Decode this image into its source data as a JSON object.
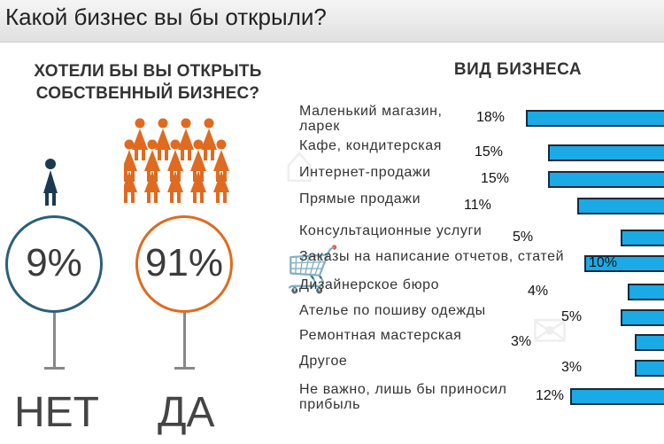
{
  "header": {
    "title": "Какой бизнес вы бы открыли?"
  },
  "left_panel": {
    "question_lines": [
      "ХОТЕЛИ БЫ ВЫ ОТКРЫТЬ",
      "СОБСТВЕННЫЙ БИЗНЕС?"
    ],
    "no": {
      "percent_label": "9%",
      "answer": "НЕТ",
      "value": 9,
      "color": "#2b5f7a"
    },
    "yes": {
      "percent_label": "91%",
      "answer": "ДА",
      "value": 91,
      "color": "#e06a1f"
    }
  },
  "chart_data": {
    "type": "bar",
    "orientation": "horizontal",
    "title": "ВИД БИЗНЕСА",
    "bar_color": "#1aaae6",
    "categories": [
      "Маленький магазин, ларек",
      "Кафе, кондитерская",
      "Интернет-продажи",
      "Прямые продажи",
      "Консультационные услуги",
      "Заказы на написание отчетов, статей",
      "Дизайнерское бюро",
      "Ателье по пошиву одежды",
      "Ремонтная мастерская",
      "Другое",
      "Не важно, лишь бы приносил прибыль"
    ],
    "category_lines": [
      [
        "Маленький магазин,",
        "ларек"
      ],
      [
        "Кафе, кондитерская"
      ],
      [
        "Интернет-продажи"
      ],
      [
        "Прямые продажи"
      ],
      [
        "Консультационные услуги"
      ],
      [
        "Заказы на написание отчетов, статей"
      ],
      [
        "Дизайнерское бюро"
      ],
      [
        "Ателье по пошиву одежды"
      ],
      [
        "Ремонтная мастерская"
      ],
      [
        "Другое"
      ],
      [
        "Не важно, лишь бы приносил",
        "прибыль"
      ]
    ],
    "values": [
      18,
      15,
      15,
      11,
      5,
      10,
      4,
      5,
      3,
      3,
      12
    ],
    "value_labels": [
      "18%",
      "15%",
      "15%",
      "11%",
      "5%",
      "10%",
      "4%",
      "5%",
      "3%",
      "3%",
      "12%"
    ]
  }
}
